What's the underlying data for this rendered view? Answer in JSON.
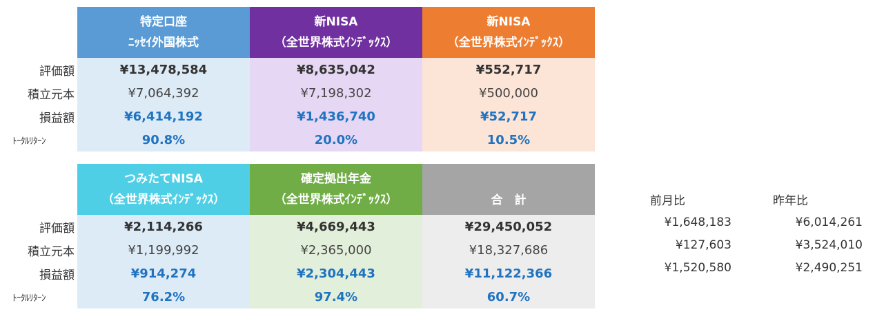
{
  "top": {
    "columns": [
      {
        "title": "特定口座",
        "subtitle": "ﾆｯｾｲ外国株式",
        "head_color": "#5b9bd5",
        "cell_color": "#ddebf7"
      },
      {
        "title": "新NISA",
        "subtitle": "（全世界株式ｲﾝﾃﾞｯｸｽ）",
        "head_color": "#7030a0",
        "cell_color": "#e6d7f4"
      },
      {
        "title": "新NISA",
        "subtitle": "（全世界株式ｲﾝﾃﾞｯｸｽ）",
        "head_color": "#ed7d31",
        "cell_color": "#fce4d6"
      }
    ],
    "rows": [
      {
        "label": "評価額",
        "values": [
          "¥13,478,584",
          "¥8,635,042",
          "¥552,717"
        ]
      },
      {
        "label": "積立元本",
        "values": [
          "¥7,064,392",
          "¥7,198,302",
          "¥500,000"
        ]
      },
      {
        "label": "損益額",
        "values": [
          "¥6,414,192",
          "¥1,436,740",
          "¥52,717"
        ]
      },
      {
        "label": "ﾄｰﾀﾙﾘﾀｰﾝ",
        "values": [
          "90.8%",
          "20.0%",
          "10.5%"
        ]
      }
    ]
  },
  "bottom": {
    "columns": [
      {
        "title": "つみたてNISA",
        "subtitle": "（全世界株式ｲﾝﾃﾞｯｸｽ）",
        "head_color": "#4fcfe6",
        "cell_color": "#ddebf7"
      },
      {
        "title": "確定拠出年金",
        "subtitle": "（全世界株式ｲﾝﾃﾞｯｸｽ）",
        "head_color": "#70ad47",
        "cell_color": "#e2efda"
      },
      {
        "title": "合　計",
        "subtitle": "",
        "head_color": "#a5a5a5",
        "cell_color": "#ededed"
      }
    ],
    "rows": [
      {
        "label": "評価額",
        "values": [
          "¥2,114,266",
          "¥4,669,443",
          "¥29,450,052"
        ]
      },
      {
        "label": "積立元本",
        "values": [
          "¥1,199,992",
          "¥2,365,000",
          "¥18,327,686"
        ]
      },
      {
        "label": "損益額",
        "values": [
          "¥914,274",
          "¥2,304,443",
          "¥11,122,366"
        ]
      },
      {
        "label": "ﾄｰﾀﾙﾘﾀｰﾝ",
        "values": [
          "76.2%",
          "97.4%",
          "60.7%"
        ]
      }
    ]
  },
  "comparison": {
    "headers": [
      "前月比",
      "昨年比"
    ],
    "rows": [
      [
        "¥1,648,183",
        "¥6,014,261"
      ],
      [
        "¥127,603",
        "¥3,524,010"
      ],
      [
        "¥1,520,580",
        "¥2,490,251"
      ]
    ]
  }
}
